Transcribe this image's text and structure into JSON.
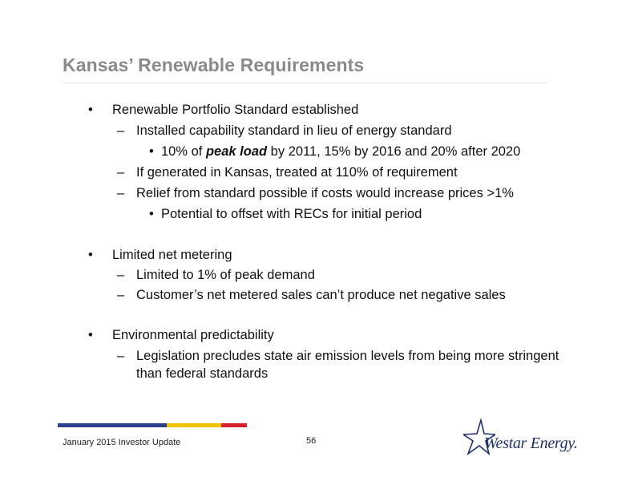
{
  "slide": {
    "title": "Kansas’ Renewable Requirements",
    "bullets": {
      "b1": {
        "marker": "•",
        "text": "Renewable Portfolio Standard established"
      },
      "b1_1": {
        "marker": "–",
        "text": "Installed capability standard in lieu of energy standard"
      },
      "b1_1_1": {
        "marker": "•",
        "pre": "10% of ",
        "em": "peak load",
        "post": " by 2011, 15% by 2016 and 20% after 2020"
      },
      "b1_2": {
        "marker": "–",
        "text": "If generated in Kansas, treated at 110% of requirement"
      },
      "b1_3": {
        "marker": "–",
        "text": "Relief from standard possible if costs would increase prices >1%"
      },
      "b1_3_1": {
        "marker": "•",
        "text": "Potential to offset with RECs for initial period"
      },
      "b2": {
        "marker": "•",
        "text": "Limited net metering"
      },
      "b2_1": {
        "marker": "–",
        "text": "Limited to 1% of peak demand"
      },
      "b2_2": {
        "marker": "–",
        "text": "Customer’s net metered sales can’t produce net negative sales"
      },
      "b3": {
        "marker": "•",
        "text": "Environmental predictability"
      },
      "b3_1": {
        "marker": "–",
        "line1": "Legislation precludes state air emission levels from being more stringent",
        "line2": "than federal standards"
      }
    }
  },
  "footer": {
    "left_text": "January 2015 Investor Update",
    "page_number": "56",
    "logo_text": "Westar Energy.",
    "bar_colors": {
      "blue": "#2b3f8f",
      "yellow": "#f2c200",
      "red": "#d4202a"
    }
  }
}
